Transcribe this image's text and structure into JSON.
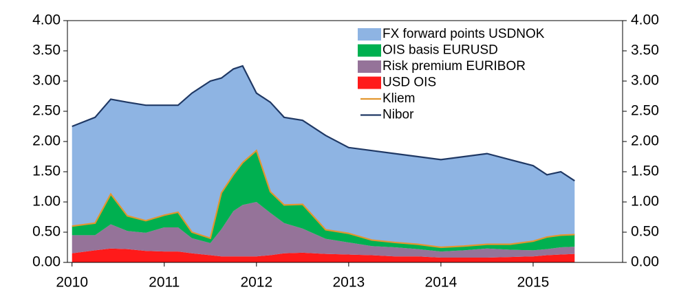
{
  "chart_data": {
    "type": "area",
    "x": [
      2010.0,
      2010.25,
      2010.42,
      2010.6,
      2010.8,
      2011.0,
      2011.15,
      2011.3,
      2011.5,
      2011.62,
      2011.75,
      2011.85,
      2012.0,
      2012.15,
      2012.3,
      2012.5,
      2012.75,
      2013.0,
      2013.25,
      2013.5,
      2013.75,
      2014.0,
      2014.25,
      2014.5,
      2014.75,
      2015.0,
      2015.15,
      2015.3,
      2015.45
    ],
    "series": [
      {
        "name": "USD OIS",
        "type": "area",
        "color": "#ff1a1a",
        "values": [
          0.15,
          0.2,
          0.23,
          0.22,
          0.19,
          0.18,
          0.18,
          0.15,
          0.12,
          0.1,
          0.1,
          0.1,
          0.1,
          0.12,
          0.15,
          0.16,
          0.14,
          0.13,
          0.12,
          0.1,
          0.1,
          0.08,
          0.08,
          0.08,
          0.09,
          0.1,
          0.12,
          0.13,
          0.14
        ]
      },
      {
        "name": "Risk premium EURIBOR",
        "type": "area",
        "color": "#957399",
        "values": [
          0.3,
          0.25,
          0.4,
          0.3,
          0.3,
          0.4,
          0.4,
          0.25,
          0.2,
          0.45,
          0.75,
          0.85,
          0.9,
          0.7,
          0.5,
          0.4,
          0.25,
          0.2,
          0.15,
          0.15,
          0.12,
          0.1,
          0.12,
          0.15,
          0.12,
          0.1,
          0.1,
          0.12,
          0.12
        ]
      },
      {
        "name": "OIS basis EURUSD",
        "type": "area",
        "color": "#00b050",
        "values": [
          0.15,
          0.2,
          0.5,
          0.25,
          0.2,
          0.2,
          0.25,
          0.1,
          0.08,
          0.6,
          0.6,
          0.7,
          0.85,
          0.35,
          0.3,
          0.4,
          0.15,
          0.15,
          0.1,
          0.08,
          0.08,
          0.07,
          0.07,
          0.07,
          0.09,
          0.15,
          0.2,
          0.2,
          0.2
        ]
      },
      {
        "name": "FX forward points USDNOK",
        "type": "area",
        "color": "#8eb4e3",
        "values": [
          1.65,
          1.75,
          1.57,
          1.88,
          1.91,
          1.82,
          1.77,
          2.3,
          2.6,
          1.9,
          1.75,
          1.6,
          0.95,
          1.48,
          1.45,
          1.39,
          1.56,
          1.42,
          1.48,
          1.47,
          1.45,
          1.45,
          1.48,
          1.5,
          1.4,
          1.25,
          1.03,
          1.05,
          0.89
        ]
      },
      {
        "name": "Kliem",
        "type": "line",
        "color": "#e3962e",
        "values": [
          0.6,
          0.65,
          1.13,
          0.77,
          0.69,
          0.78,
          0.83,
          0.5,
          0.4,
          1.15,
          1.45,
          1.65,
          1.85,
          1.17,
          0.95,
          0.96,
          0.54,
          0.48,
          0.37,
          0.33,
          0.3,
          0.25,
          0.27,
          0.3,
          0.3,
          0.35,
          0.42,
          0.45,
          0.46
        ]
      },
      {
        "name": "Nibor",
        "type": "line",
        "color": "#1f3864",
        "values": [
          2.25,
          2.4,
          2.7,
          2.65,
          2.6,
          2.6,
          2.6,
          2.8,
          3.0,
          3.05,
          3.2,
          3.25,
          2.8,
          2.65,
          2.4,
          2.35,
          2.1,
          1.9,
          1.85,
          1.8,
          1.75,
          1.7,
          1.75,
          1.8,
          1.7,
          1.6,
          1.45,
          1.5,
          1.35
        ]
      }
    ],
    "legend_order": [
      3,
      2,
      1,
      0,
      4,
      5
    ],
    "xlim": [
      2009.95,
      2015.97
    ],
    "xticks": [
      2010,
      2011,
      2012,
      2013,
      2014,
      2015
    ],
    "ylim": [
      0,
      4
    ],
    "yticks": [
      {
        "value": 0,
        "label": "0.00"
      },
      {
        "value": 0.5,
        "label": "0.50"
      },
      {
        "value": 1,
        "label": "1.00"
      },
      {
        "value": 1.5,
        "label": "1.50"
      },
      {
        "value": 2,
        "label": "2.00"
      },
      {
        "value": 2.5,
        "label": "2.50"
      },
      {
        "value": 3,
        "label": "3.00"
      },
      {
        "value": 3.5,
        "label": "3.50"
      },
      {
        "value": 4,
        "label": "4.00"
      }
    ],
    "legend": "upper right"
  }
}
